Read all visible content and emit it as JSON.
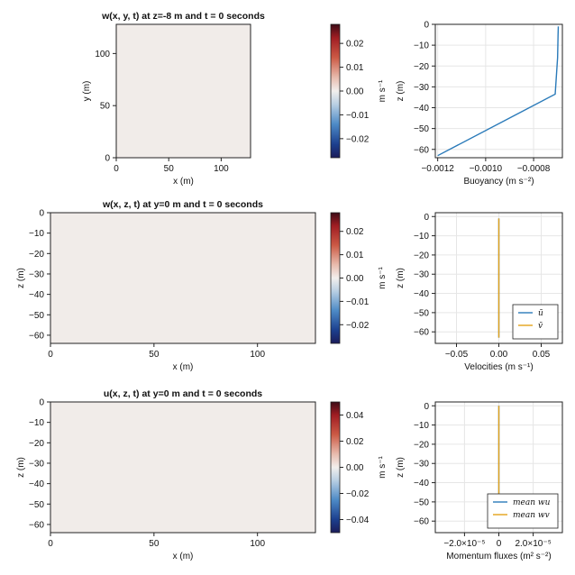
{
  "colors": {
    "series_blue": "#2a7ab9",
    "series_orange": "#e3a21a",
    "heatmap_fill": "#f1ece9",
    "grid": "#e6e6e6"
  },
  "chart_data": [
    {
      "type": "heatmap",
      "title": "w(x, y, t) at z=-8 m and t = 0 seconds",
      "xlabel": "x (m)",
      "ylabel": "y (m)",
      "xlim": [
        0,
        128
      ],
      "ylim": [
        0,
        128
      ],
      "xticks": [
        0,
        50,
        100
      ],
      "yticks": [
        0,
        50,
        100
      ],
      "value": 0
    },
    {
      "type": "colorbar",
      "label": "m s⁻¹",
      "range": [
        -0.028,
        0.028
      ],
      "ticks": [
        -0.02,
        -0.01,
        0.0,
        0.01,
        0.02
      ],
      "tick_labels": [
        "−0.02",
        "−0.01",
        "0.00",
        "0.01",
        "0.02"
      ]
    },
    {
      "type": "line",
      "xlabel": "Buoyancy (m s⁻²)",
      "ylabel": "z (m)",
      "xlim": [
        -0.00121,
        -0.00068
      ],
      "ylim": [
        -64,
        0
      ],
      "xticks": [
        -0.0012,
        -0.001,
        -0.0008
      ],
      "xtick_labels": [
        "−0.0012",
        "−0.0010",
        "−0.0008"
      ],
      "yticks": [
        0,
        -10,
        -20,
        -30,
        -40,
        -50,
        -60
      ],
      "ytick_labels": [
        "0",
        "−10",
        "−20",
        "−30",
        "−40",
        "−50",
        "−60"
      ],
      "grid": true,
      "series": [
        {
          "x": [
            -0.0012,
            -0.00071,
            -0.0007,
            -0.000698,
            -0.000697
          ],
          "y": [
            -63,
            -33.5,
            -16,
            -5,
            -1
          ]
        }
      ]
    },
    {
      "type": "heatmap",
      "title": "w(x, z, t) at y=0 m and t = 0 seconds",
      "xlabel": "x (m)",
      "ylabel": "z (m)",
      "xlim": [
        0,
        128
      ],
      "ylim": [
        -64,
        0
      ],
      "xticks": [
        0,
        50,
        100
      ],
      "yticks": [
        0,
        -10,
        -20,
        -30,
        -40,
        -50,
        -60
      ],
      "ytick_labels": [
        "0",
        "−10",
        "−20",
        "−30",
        "−40",
        "−50",
        "−60"
      ],
      "value": 0
    },
    {
      "type": "colorbar",
      "label": "m s⁻¹",
      "range": [
        -0.028,
        0.028
      ],
      "ticks": [
        -0.02,
        -0.01,
        0.0,
        0.01,
        0.02
      ],
      "tick_labels": [
        "−0.02",
        "−0.01",
        "0.00",
        "0.01",
        "0.02"
      ]
    },
    {
      "type": "line",
      "xlabel": "Velocities (m s⁻¹)",
      "ylabel": "z (m)",
      "xlim": [
        -0.075,
        0.075
      ],
      "ylim": [
        -66,
        2
      ],
      "xticks": [
        -0.05,
        0.0,
        0.05
      ],
      "xtick_labels": [
        "−0.05",
        "0.00",
        "0.05"
      ],
      "yticks": [
        0,
        -10,
        -20,
        -30,
        -40,
        -50,
        -60
      ],
      "ytick_labels": [
        "0",
        "−10",
        "−20",
        "−30",
        "−40",
        "−50",
        "−60"
      ],
      "grid": true,
      "legend": "bottom-right",
      "series": [
        {
          "name": "ū",
          "x": [
            0,
            0
          ],
          "y": [
            -63,
            -1
          ]
        },
        {
          "name": "v̄",
          "x": [
            0,
            0
          ],
          "y": [
            -63,
            -1
          ]
        }
      ]
    },
    {
      "type": "heatmap",
      "title": "u(x, z, t) at y=0 m and t = 0 seconds",
      "xlabel": "x (m)",
      "ylabel": "z (m)",
      "xlim": [
        0,
        128
      ],
      "ylim": [
        -64,
        0
      ],
      "xticks": [
        0,
        50,
        100
      ],
      "yticks": [
        0,
        -10,
        -20,
        -30,
        -40,
        -50,
        -60
      ],
      "ytick_labels": [
        "0",
        "−10",
        "−20",
        "−30",
        "−40",
        "−50",
        "−60"
      ],
      "value": 0
    },
    {
      "type": "colorbar",
      "label": "m s⁻¹",
      "range": [
        -0.05,
        0.05
      ],
      "ticks": [
        -0.04,
        -0.02,
        0.0,
        0.02,
        0.04
      ],
      "tick_labels": [
        "−0.04",
        "−0.02",
        "0.00",
        "0.02",
        "0.04"
      ]
    },
    {
      "type": "line",
      "xlabel": "Momentum fluxes (m² s⁻²)",
      "ylabel": "z (m)",
      "xlim": [
        -3.7e-05,
        3.7e-05
      ],
      "ylim": [
        -66,
        2
      ],
      "xticks": [
        -2e-05,
        0.0,
        2e-05
      ],
      "xtick_labels": [
        "−2.0×10⁻⁵",
        "0",
        "2.0×10⁻⁵"
      ],
      "yticks": [
        0,
        -10,
        -20,
        -30,
        -40,
        -50,
        -60
      ],
      "ytick_labels": [
        "0",
        "−10",
        "−20",
        "−30",
        "−40",
        "−50",
        "−60"
      ],
      "grid": true,
      "legend": "bottom-right",
      "series": [
        {
          "name": "mean wu",
          "x": [
            0,
            0
          ],
          "y": [
            -63,
            0
          ]
        },
        {
          "name": "mean wv",
          "x": [
            0,
            0
          ],
          "y": [
            -63,
            0
          ]
        }
      ]
    }
  ]
}
